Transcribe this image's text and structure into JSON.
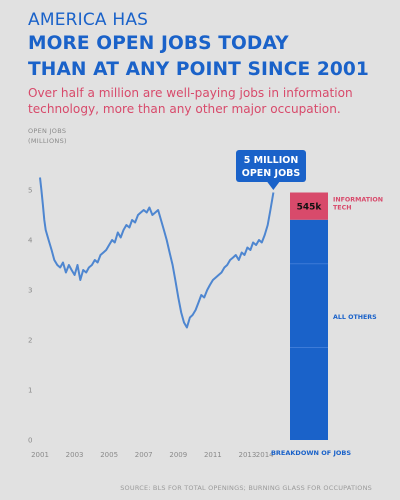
{
  "header": {
    "kicker": "AMERICA HAS",
    "headline_line1": "MORE OPEN JOBS TODAY",
    "headline_line2": "THAN AT ANY POINT SINCE 2001",
    "subtitle": "Over half a million are well-paying jobs in information technology, more than any other major occupation."
  },
  "source": "SOURCE: BLS FOR TOTAL OPENINGS; BURNING GLASS FOR OCCUPATIONS",
  "colors": {
    "background": "#e1e1e1",
    "blue": "#1a62c9",
    "line": "#4e86d0",
    "pink": "#d84a6b",
    "axis_text": "#8a8a8a"
  },
  "chart_data": [
    {
      "type": "line",
      "ylabel_line1": "OPEN JOBS",
      "ylabel_line2": "(MILLIONS)",
      "ylim": [
        0,
        5.5
      ],
      "yticks": [
        0,
        1,
        2,
        3,
        4,
        5
      ],
      "xlim": [
        2001,
        2015
      ],
      "xticks": [
        2001,
        2003,
        2005,
        2007,
        2009,
        2011,
        2013,
        2014
      ],
      "grid": false,
      "callout": {
        "line1": "5 MILLION",
        "line2": "OPEN JOBS"
      },
      "series": [
        {
          "x": [
            2001.0,
            2001.08,
            2001.17,
            2001.25,
            2001.33,
            2001.5,
            2001.67,
            2001.83,
            2002.0,
            2002.17,
            2002.33,
            2002.5,
            2002.67,
            2002.83,
            2003.0,
            2003.17,
            2003.33,
            2003.5,
            2003.67,
            2003.83,
            2004.0,
            2004.17,
            2004.33,
            2004.5,
            2004.67,
            2004.83,
            2005.0,
            2005.17,
            2005.33,
            2005.5,
            2005.67,
            2005.83,
            2006.0,
            2006.17,
            2006.33,
            2006.5,
            2006.67,
            2006.83,
            2007.0,
            2007.17,
            2007.33,
            2007.5,
            2007.67,
            2007.83,
            2008.0,
            2008.17,
            2008.33,
            2008.5,
            2008.67,
            2008.83,
            2009.0,
            2009.17,
            2009.33,
            2009.5,
            2009.67,
            2009.83,
            2010.0,
            2010.17,
            2010.33,
            2010.5,
            2010.67,
            2010.83,
            2011.0,
            2011.17,
            2011.33,
            2011.5,
            2011.67,
            2011.83,
            2012.0,
            2012.17,
            2012.33,
            2012.5,
            2012.67,
            2012.83,
            2013.0,
            2013.17,
            2013.33,
            2013.5,
            2013.67,
            2013.83,
            2014.0,
            2014.17,
            2014.33,
            2014.5
          ],
          "values": [
            5.25,
            5.0,
            4.7,
            4.4,
            4.2,
            4.0,
            3.8,
            3.6,
            3.5,
            3.45,
            3.55,
            3.35,
            3.5,
            3.4,
            3.3,
            3.5,
            3.2,
            3.4,
            3.35,
            3.45,
            3.5,
            3.6,
            3.55,
            3.7,
            3.75,
            3.8,
            3.9,
            4.0,
            3.95,
            4.15,
            4.05,
            4.2,
            4.3,
            4.25,
            4.4,
            4.35,
            4.5,
            4.55,
            4.6,
            4.55,
            4.65,
            4.5,
            4.55,
            4.6,
            4.4,
            4.2,
            4.0,
            3.75,
            3.5,
            3.2,
            2.85,
            2.55,
            2.35,
            2.25,
            2.45,
            2.5,
            2.6,
            2.75,
            2.9,
            2.85,
            3.0,
            3.1,
            3.2,
            3.25,
            3.3,
            3.35,
            3.45,
            3.5,
            3.6,
            3.65,
            3.7,
            3.6,
            3.75,
            3.7,
            3.85,
            3.8,
            3.95,
            3.9,
            4.0,
            3.95,
            4.1,
            4.3,
            4.6,
            4.95
          ]
        }
      ]
    },
    {
      "type": "bar",
      "xlabel": "BREAKDOWN OF JOBS",
      "segments": [
        {
          "name": "INFORMATION TECH",
          "value": 0.545,
          "data_label": "545k"
        },
        {
          "name": "ALL OTHERS",
          "value": 4.405
        }
      ]
    }
  ]
}
